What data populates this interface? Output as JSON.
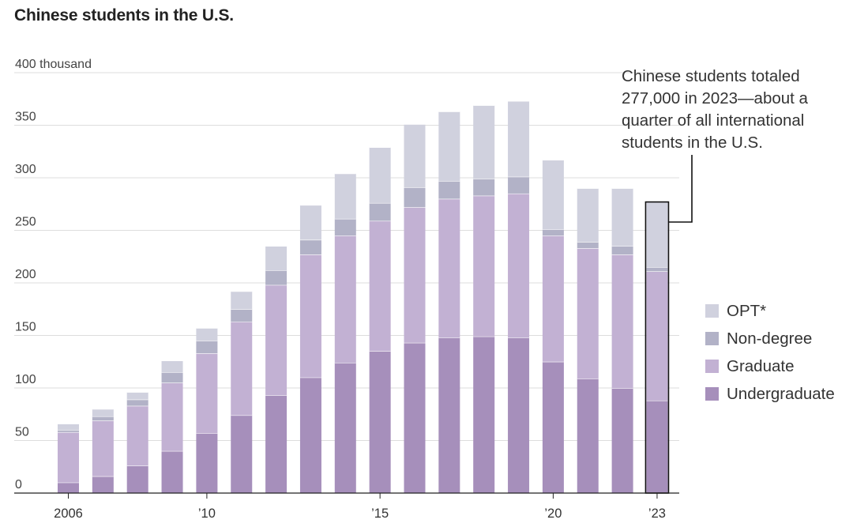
{
  "chart_data": {
    "type": "bar",
    "stacked": true,
    "title": "Chinese students in the U.S.",
    "unit_label": "thousand",
    "ylim": [
      0,
      400
    ],
    "y_ticks": [
      {
        "value": 0,
        "label": "0"
      },
      {
        "value": 50,
        "label": "50"
      },
      {
        "value": 100,
        "label": "100"
      },
      {
        "value": 150,
        "label": "150"
      },
      {
        "value": 200,
        "label": "200"
      },
      {
        "value": 250,
        "label": "250"
      },
      {
        "value": 300,
        "label": "300"
      },
      {
        "value": 350,
        "label": "350"
      },
      {
        "value": 400,
        "label": "400 thousand"
      }
    ],
    "categories": [
      "2006",
      "2007",
      "2008",
      "2009",
      "2010",
      "2011",
      "2012",
      "2013",
      "2014",
      "2015",
      "2016",
      "2017",
      "2018",
      "2019",
      "2020",
      "2021",
      "2022",
      "2023"
    ],
    "x_tick_labels": [
      {
        "category": "2006",
        "label": "2006"
      },
      {
        "category": "2010",
        "label": "’10"
      },
      {
        "category": "2015",
        "label": "’15"
      },
      {
        "category": "2020",
        "label": "’20"
      },
      {
        "category": "2023",
        "label": "’23"
      }
    ],
    "series": [
      {
        "name": "Undergraduate",
        "color": "#a68fbb",
        "values": [
          10,
          16,
          26,
          40,
          57,
          74,
          93,
          110,
          124,
          135,
          143,
          148,
          149,
          148,
          125,
          109,
          100,
          88
        ]
      },
      {
        "name": "Graduate",
        "color": "#c2b1d3",
        "values": [
          48,
          53,
          57,
          65,
          76,
          89,
          105,
          117,
          121,
          124,
          129,
          132,
          134,
          137,
          120,
          124,
          127,
          123
        ]
      },
      {
        "name": "Non-degree",
        "color": "#b2b2c7",
        "values": [
          2,
          4,
          6,
          10,
          12,
          12,
          14,
          14,
          16,
          17,
          19,
          17,
          16,
          16,
          6,
          6,
          8,
          4
        ]
      },
      {
        "name": "OPT*",
        "color": "#d0d1de",
        "values": [
          6,
          7,
          7,
          11,
          12,
          17,
          23,
          33,
          43,
          53,
          60,
          66,
          70,
          72,
          66,
          51,
          55,
          62
        ]
      }
    ],
    "highlight_category": "2023",
    "annotation": "Chinese students totaled 277,000 in 2023—about a quarter of all international students in the U.S."
  },
  "legend": {
    "items": [
      {
        "label": "OPT*",
        "color": "#d0d1de"
      },
      {
        "label": "Non-degree",
        "color": "#b2b2c7"
      },
      {
        "label": "Graduate",
        "color": "#c2b1d3"
      },
      {
        "label": "Undergraduate",
        "color": "#a68fbb"
      }
    ]
  }
}
